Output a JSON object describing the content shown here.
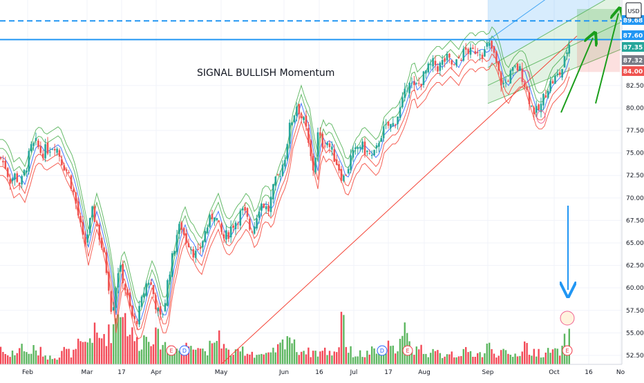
{
  "chart_data": {
    "type": "candlestick",
    "title": "",
    "annotation": "SIGNAL BULLISH Momentum",
    "currency": "USD",
    "x_ticks": [
      "Feb",
      "Mar",
      "17",
      "Apr",
      "May",
      "Jun",
      "16",
      "Jul",
      "17",
      "Aug",
      "Sep",
      "Oct",
      "16",
      "No"
    ],
    "ylim": [
      51.5,
      92.0
    ],
    "y_ticks": [
      52.5,
      55.0,
      57.5,
      60.0,
      62.5,
      65.0,
      67.5,
      70.0,
      72.5,
      75.0,
      77.5,
      80.0,
      82.5
    ],
    "price_tags": [
      {
        "label": "89.68",
        "value": 89.68,
        "color": "#2196f3",
        "text": "#ffffff"
      },
      {
        "label": "87.60",
        "value": 87.6,
        "color": "#2196f3",
        "text": "#ffffff"
      },
      {
        "label": "87.35",
        "value": 87.35,
        "color": "#26a69a",
        "text": "#ffffff"
      },
      {
        "label": "87.32",
        "value": 87.32,
        "color": "#787b86",
        "text": "#ffffff"
      },
      {
        "label": "84.00",
        "value": 84.0,
        "color": "#ef5350",
        "text": "#ffffff"
      }
    ],
    "horizontal_lines": [
      {
        "value": 89.68,
        "style": "dashed",
        "color": "#2196f3"
      },
      {
        "value": 87.6,
        "style": "solid",
        "color": "#2196f3"
      }
    ],
    "price_path": [
      [
        0,
        74.5
      ],
      [
        8,
        73.5
      ],
      [
        14,
        72.0
      ],
      [
        22,
        72.5
      ],
      [
        30,
        71.5
      ],
      [
        38,
        73.5
      ],
      [
        45,
        75.5
      ],
      [
        52,
        76.0
      ],
      [
        60,
        75.0
      ],
      [
        70,
        75.5
      ],
      [
        80,
        76.0
      ],
      [
        90,
        74.0
      ],
      [
        100,
        72.5
      ],
      [
        108,
        70.0
      ],
      [
        116,
        67.0
      ],
      [
        122,
        64.5
      ],
      [
        128,
        66.5
      ],
      [
        134,
        68.5
      ],
      [
        140,
        67.0
      ],
      [
        146,
        65.0
      ],
      [
        152,
        63.0
      ],
      [
        158,
        60.0
      ],
      [
        162,
        57.0
      ],
      [
        166,
        59.5
      ],
      [
        172,
        62.5
      ],
      [
        178,
        61.0
      ],
      [
        184,
        59.0
      ],
      [
        190,
        57.0
      ],
      [
        196,
        56.0
      ],
      [
        202,
        57.5
      ],
      [
        208,
        59.5
      ],
      [
        214,
        61.0
      ],
      [
        220,
        60.0
      ],
      [
        226,
        58.0
      ],
      [
        232,
        56.5
      ],
      [
        238,
        58.0
      ],
      [
        244,
        61.5
      ],
      [
        250,
        63.5
      ],
      [
        256,
        66.0
      ],
      [
        262,
        67.0
      ],
      [
        268,
        65.5
      ],
      [
        274,
        65.0
      ],
      [
        280,
        64.0
      ],
      [
        286,
        63.5
      ],
      [
        292,
        65.0
      ],
      [
        298,
        66.5
      ],
      [
        304,
        67.5
      ],
      [
        310,
        68.5
      ],
      [
        318,
        66.5
      ],
      [
        324,
        65.5
      ],
      [
        330,
        66.0
      ],
      [
        336,
        67.0
      ],
      [
        342,
        67.5
      ],
      [
        350,
        68.5
      ],
      [
        356,
        68.0
      ],
      [
        362,
        66.5
      ],
      [
        368,
        67.0
      ],
      [
        374,
        69.0
      ],
      [
        380,
        69.5
      ],
      [
        388,
        68.5
      ],
      [
        394,
        70.5
      ],
      [
        400,
        72.0
      ],
      [
        406,
        73.0
      ],
      [
        412,
        74.5
      ],
      [
        418,
        77.5
      ],
      [
        424,
        79.0
      ],
      [
        430,
        80.5
      ],
      [
        436,
        79.0
      ],
      [
        442,
        78.0
      ],
      [
        448,
        75.0
      ],
      [
        454,
        73.0
      ],
      [
        460,
        77.0
      ],
      [
        466,
        76.0
      ],
      [
        472,
        76.5
      ],
      [
        478,
        75.5
      ],
      [
        484,
        74.5
      ],
      [
        490,
        73.5
      ],
      [
        496,
        72.0
      ],
      [
        502,
        73.0
      ],
      [
        508,
        74.5
      ],
      [
        514,
        75.0
      ],
      [
        520,
        76.0
      ],
      [
        526,
        75.5
      ],
      [
        532,
        75.0
      ],
      [
        538,
        74.5
      ],
      [
        544,
        75.0
      ],
      [
        550,
        77.0
      ],
      [
        556,
        77.5
      ],
      [
        562,
        78.0
      ],
      [
        568,
        78.0
      ],
      [
        574,
        79.0
      ],
      [
        580,
        80.0
      ],
      [
        586,
        81.5
      ],
      [
        592,
        83.5
      ],
      [
        598,
        82.0
      ],
      [
        604,
        82.5
      ],
      [
        610,
        83.0
      ],
      [
        616,
        84.0
      ],
      [
        622,
        84.5
      ],
      [
        628,
        85.0
      ],
      [
        634,
        84.5
      ],
      [
        640,
        85.0
      ],
      [
        646,
        85.5
      ],
      [
        652,
        85.0
      ],
      [
        658,
        84.5
      ],
      [
        664,
        85.5
      ],
      [
        670,
        86.0
      ],
      [
        676,
        86.5
      ],
      [
        682,
        86.0
      ],
      [
        688,
        86.5
      ],
      [
        694,
        86.5
      ],
      [
        700,
        86.0
      ],
      [
        706,
        87.0
      ],
      [
        712,
        86.5
      ],
      [
        718,
        85.0
      ],
      [
        724,
        83.0
      ],
      [
        730,
        82.5
      ],
      [
        736,
        83.5
      ],
      [
        742,
        84.0
      ],
      [
        748,
        84.5
      ],
      [
        754,
        84.0
      ],
      [
        758,
        83.0
      ],
      [
        762,
        82.0
      ],
      [
        766,
        81.0
      ],
      [
        770,
        80.0
      ],
      [
        776,
        79.5
      ],
      [
        782,
        80.0
      ],
      [
        788,
        81.5
      ],
      [
        794,
        82.5
      ],
      [
        800,
        83.0
      ],
      [
        806,
        83.5
      ],
      [
        812,
        84.0
      ],
      [
        818,
        85.5
      ],
      [
        822,
        87.0
      ],
      [
        826,
        87.35
      ]
    ],
    "volume_path": [
      [
        0,
        9
      ],
      [
        6,
        5
      ],
      [
        12,
        4
      ],
      [
        18,
        6
      ],
      [
        24,
        3
      ],
      [
        30,
        12
      ],
      [
        36,
        5
      ],
      [
        42,
        5
      ],
      [
        48,
        7
      ],
      [
        54,
        5
      ],
      [
        60,
        6
      ],
      [
        66,
        4
      ],
      [
        72,
        3
      ],
      [
        78,
        4
      ],
      [
        84,
        3
      ],
      [
        90,
        7
      ],
      [
        96,
        6
      ],
      [
        102,
        5
      ],
      [
        108,
        5
      ],
      [
        114,
        9
      ],
      [
        120,
        8
      ],
      [
        126,
        10
      ],
      [
        132,
        13
      ],
      [
        138,
        14
      ],
      [
        144,
        11
      ],
      [
        150,
        14
      ],
      [
        156,
        13
      ],
      [
        162,
        16
      ],
      [
        166,
        19
      ],
      [
        170,
        24
      ],
      [
        174,
        28
      ],
      [
        178,
        26
      ],
      [
        182,
        20
      ],
      [
        186,
        17
      ],
      [
        190,
        14
      ],
      [
        196,
        11
      ],
      [
        202,
        9
      ],
      [
        208,
        12
      ],
      [
        214,
        13
      ],
      [
        220,
        14
      ],
      [
        226,
        12
      ],
      [
        232,
        11
      ],
      [
        238,
        9
      ],
      [
        244,
        8
      ],
      [
        250,
        9
      ],
      [
        256,
        7
      ],
      [
        262,
        6
      ],
      [
        268,
        8
      ],
      [
        274,
        9
      ],
      [
        280,
        11
      ],
      [
        286,
        9
      ],
      [
        292,
        7
      ],
      [
        298,
        6
      ],
      [
        304,
        8
      ],
      [
        310,
        7
      ],
      [
        316,
        16
      ],
      [
        322,
        9
      ],
      [
        328,
        6
      ],
      [
        334,
        5
      ],
      [
        340,
        5
      ],
      [
        346,
        5
      ],
      [
        352,
        7
      ],
      [
        358,
        5
      ],
      [
        364,
        6
      ],
      [
        370,
        4
      ],
      [
        376,
        5
      ],
      [
        382,
        4
      ],
      [
        388,
        4
      ],
      [
        394,
        5
      ],
      [
        400,
        7
      ],
      [
        406,
        8
      ],
      [
        412,
        11
      ],
      [
        418,
        15
      ],
      [
        424,
        9
      ],
      [
        430,
        7
      ],
      [
        436,
        6
      ],
      [
        442,
        7
      ],
      [
        448,
        5
      ],
      [
        454,
        6
      ],
      [
        460,
        5
      ],
      [
        466,
        6
      ],
      [
        472,
        6
      ],
      [
        478,
        5
      ],
      [
        484,
        6
      ],
      [
        490,
        7
      ],
      [
        496,
        31
      ],
      [
        502,
        5
      ],
      [
        508,
        6
      ],
      [
        514,
        4
      ],
      [
        520,
        5
      ],
      [
        526,
        4
      ],
      [
        532,
        5
      ],
      [
        538,
        6
      ],
      [
        544,
        5
      ],
      [
        550,
        5
      ],
      [
        556,
        5
      ],
      [
        562,
        8
      ],
      [
        568,
        6
      ],
      [
        574,
        9
      ],
      [
        580,
        10
      ],
      [
        586,
        15
      ],
      [
        592,
        9
      ],
      [
        598,
        6
      ],
      [
        604,
        8
      ],
      [
        610,
        7
      ],
      [
        616,
        6
      ],
      [
        622,
        5
      ],
      [
        628,
        5
      ],
      [
        634,
        5
      ],
      [
        640,
        4
      ],
      [
        646,
        5
      ],
      [
        652,
        6
      ],
      [
        658,
        4
      ],
      [
        664,
        5
      ],
      [
        670,
        5
      ],
      [
        676,
        6
      ],
      [
        682,
        5
      ],
      [
        688,
        5
      ],
      [
        694,
        5
      ],
      [
        700,
        4
      ],
      [
        706,
        9
      ],
      [
        712,
        6
      ],
      [
        718,
        5
      ],
      [
        724,
        6
      ],
      [
        730,
        5
      ],
      [
        736,
        4
      ],
      [
        742,
        4
      ],
      [
        748,
        5
      ],
      [
        754,
        5
      ],
      [
        760,
        10
      ],
      [
        766,
        6
      ],
      [
        772,
        5
      ],
      [
        778,
        6
      ],
      [
        784,
        5
      ],
      [
        790,
        5
      ],
      [
        796,
        6
      ],
      [
        802,
        6
      ],
      [
        808,
        5
      ],
      [
        814,
        7
      ],
      [
        820,
        13
      ],
      [
        826,
        12
      ]
    ],
    "event_markers": [
      {
        "label": "E",
        "type": "earnings",
        "position": "Apr"
      },
      {
        "label": "D",
        "type": "dividend",
        "position": "Apr"
      },
      {
        "label": "D",
        "type": "dividend",
        "position": "Jul 17"
      },
      {
        "label": "E",
        "type": "earnings",
        "position": "Jul 17"
      },
      {
        "label": "E",
        "type": "earnings",
        "position": "Oct"
      }
    ],
    "colors": {
      "up": "#26a69a",
      "down": "#ef5350",
      "volume_up": "#4caf50",
      "volume_down": "#f23645",
      "ema_green": "#4caf50",
      "ema_blue": "#2962ff",
      "ema_red": "#f44336",
      "trendline": "#f44336",
      "channel_blue": "#2196f3",
      "channel_green": "#4caf50",
      "arrow_blue": "#2196f3",
      "arrow_green": "#1b9e1b"
    }
  }
}
